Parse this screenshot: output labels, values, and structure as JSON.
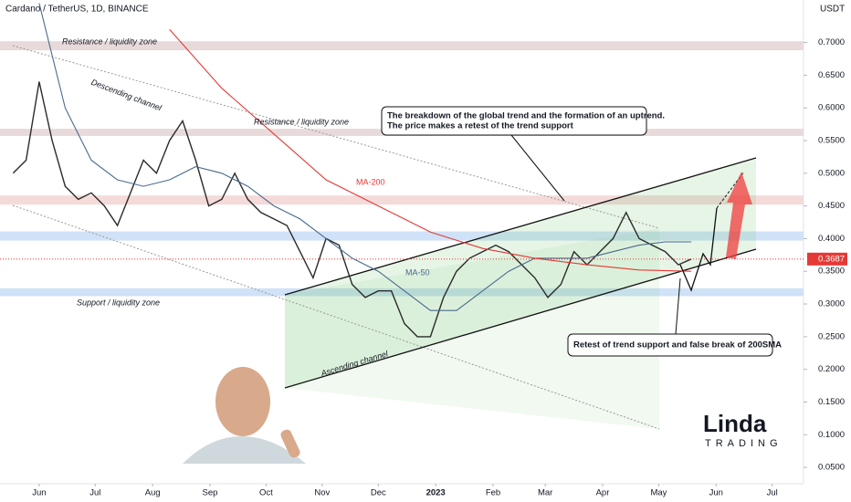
{
  "chart_data": {
    "type": "line",
    "title": "Cardano / TetherUS, 1D, BINANCE",
    "y_axis_label": "USDT",
    "xlim": [
      -1,
      60.6
    ],
    "xticks": [
      {
        "value": 2,
        "label": "Jun"
      },
      {
        "value": 6.3,
        "label": "Jul"
      },
      {
        "value": 10.7,
        "label": "Aug"
      },
      {
        "value": 15.1,
        "label": "Sep"
      },
      {
        "value": 19.4,
        "label": "Oct"
      },
      {
        "value": 23.7,
        "label": "Nov"
      },
      {
        "value": 28,
        "label": "Dec"
      },
      {
        "value": 32.4,
        "label": "2023"
      },
      {
        "value": 36.8,
        "label": "Feb"
      },
      {
        "value": 40.8,
        "label": "Mar"
      },
      {
        "value": 45.2,
        "label": "Apr"
      },
      {
        "value": 49.5,
        "label": "May"
      },
      {
        "value": 53.9,
        "label": "Jun"
      },
      {
        "value": 58.2,
        "label": "Jul"
      }
    ],
    "ylim": [
      0.025,
      0.765
    ],
    "yticks": [
      {
        "value": 0.05,
        "label": "0.0500"
      },
      {
        "value": 0.1,
        "label": "0.1000"
      },
      {
        "value": 0.15,
        "label": "0.1500"
      },
      {
        "value": 0.2,
        "label": "0.2000"
      },
      {
        "value": 0.25,
        "label": "0.2500"
      },
      {
        "value": 0.3,
        "label": "0.3000"
      },
      {
        "value": 0.35,
        "label": "0.3500"
      },
      {
        "value": 0.4,
        "label": "0.4000"
      },
      {
        "value": 0.45,
        "label": "0.4500"
      },
      {
        "value": 0.5,
        "label": "0.5000"
      },
      {
        "value": 0.55,
        "label": "0.5500"
      },
      {
        "value": 0.6,
        "label": "0.6000"
      },
      {
        "value": 0.65,
        "label": "0.6500"
      },
      {
        "value": 0.7,
        "label": "0.7000"
      }
    ],
    "series": [
      {
        "color": "#2b2b2b",
        "x": [
          0,
          1,
          2,
          3,
          4,
          5,
          6,
          7,
          8,
          9,
          10,
          11,
          12,
          13,
          14,
          15,
          16,
          17,
          18,
          19,
          20,
          21,
          22,
          23,
          24,
          25,
          26,
          27,
          28,
          29,
          30,
          31,
          32,
          33,
          34,
          35,
          36,
          37,
          38,
          39,
          40,
          41,
          42,
          43,
          44,
          45,
          46,
          47,
          48,
          49,
          50,
          51,
          52
        ],
        "values": [
          0.5,
          0.52,
          0.64,
          0.55,
          0.48,
          0.46,
          0.47,
          0.45,
          0.42,
          0.47,
          0.52,
          0.5,
          0.55,
          0.58,
          0.52,
          0.45,
          0.46,
          0.5,
          0.46,
          0.44,
          0.43,
          0.42,
          0.38,
          0.34,
          0.4,
          0.39,
          0.33,
          0.31,
          0.32,
          0.32,
          0.27,
          0.25,
          0.25,
          0.31,
          0.35,
          0.37,
          0.38,
          0.39,
          0.38,
          0.36,
          0.34,
          0.31,
          0.33,
          0.38,
          0.36,
          0.38,
          0.4,
          0.44,
          0.4,
          0.39,
          0.38,
          0.36,
          0.3687
        ]
      },
      {
        "name": "MA-50",
        "color": "#4a6a8c",
        "x": [
          2,
          4,
          6,
          8,
          10,
          12,
          14,
          16,
          18,
          20,
          22,
          24,
          26,
          28,
          30,
          32,
          34,
          36,
          38,
          40,
          42,
          44,
          46,
          48,
          50,
          52
        ],
        "values": [
          0.76,
          0.6,
          0.52,
          0.49,
          0.48,
          0.49,
          0.51,
          0.5,
          0.48,
          0.45,
          0.43,
          0.4,
          0.37,
          0.35,
          0.32,
          0.29,
          0.29,
          0.32,
          0.35,
          0.37,
          0.37,
          0.37,
          0.38,
          0.39,
          0.395,
          0.395
        ]
      },
      {
        "name": "MA-200",
        "color": "#e53935",
        "x": [
          12,
          16,
          20,
          24,
          28,
          32,
          36,
          40,
          44,
          48,
          52
        ],
        "values": [
          0.72,
          0.63,
          0.56,
          0.49,
          0.45,
          0.41,
          0.385,
          0.37,
          0.36,
          0.352,
          0.35
        ]
      }
    ],
    "zones": [
      {
        "from": 0.688,
        "to": 0.702,
        "color": "rgba(190,150,150,0.35)"
      },
      {
        "from": 0.557,
        "to": 0.568,
        "color": "rgba(190,150,150,0.35)"
      },
      {
        "from": 0.452,
        "to": 0.466,
        "color": "rgba(225,150,150,0.35)"
      },
      {
        "from": 0.397,
        "to": 0.411,
        "color": "rgba(100,160,230,0.3)"
      },
      {
        "from": 0.312,
        "to": 0.324,
        "color": "rgba(100,160,230,0.3)"
      }
    ],
    "current_price": 0.3687,
    "annotations": [
      "Resistance / liquidity zone",
      "Descending channel",
      "Resistance / liquidity zone",
      "Support / liquidity zone",
      "Ascending channel"
    ],
    "callouts": [
      [
        "The breakdown of the global trend and the formation of an uptrend.",
        "The price makes a retest of the trend support"
      ],
      [
        "Retest of trend support and false break of 200SMA"
      ]
    ],
    "logo": {
      "name": "Linda",
      "tagline": "TRADING"
    }
  }
}
